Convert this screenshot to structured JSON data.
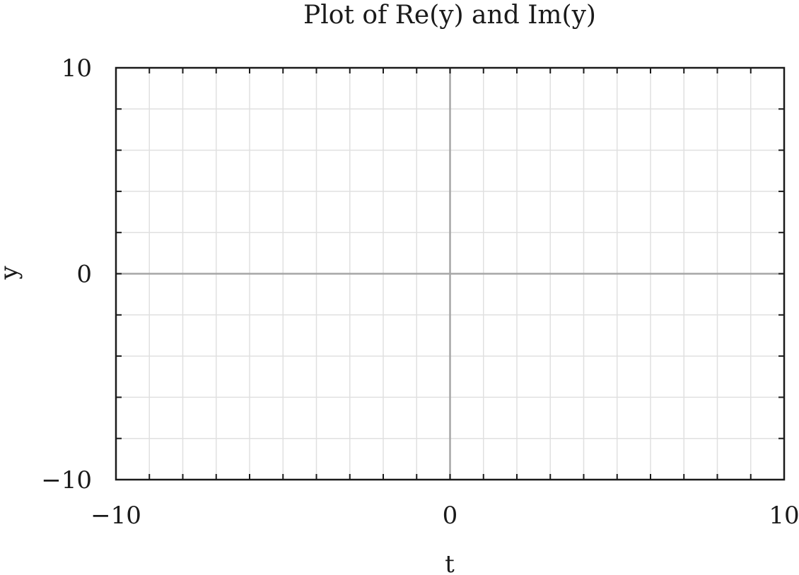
{
  "chart_data": {
    "type": "line",
    "title": "Plot of Re(y) and Im(y)",
    "xlabel": "t",
    "ylabel": "y",
    "xlim": [
      -10,
      10
    ],
    "ylim": [
      -10,
      10
    ],
    "x_ticks": [
      -10,
      0,
      10
    ],
    "y_ticks": [
      -10,
      0,
      10
    ],
    "x_tick_labels": [
      "−10",
      "0",
      "10"
    ],
    "y_tick_labels": [
      "−10",
      "0",
      "10"
    ],
    "x_minor_step": 1,
    "y_minor_step": 2,
    "grid": true,
    "zero_axes": true,
    "series": [],
    "colors": {
      "frame": "#1a1a1a",
      "grid": "#e0e0e0",
      "zero_axis": "#a6a6a6"
    }
  }
}
